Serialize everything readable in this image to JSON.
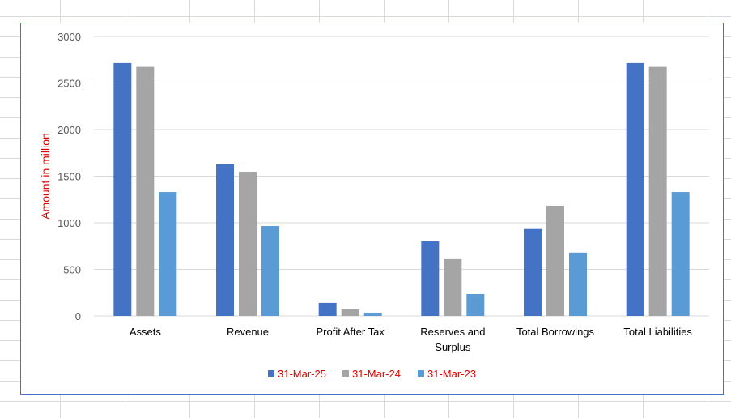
{
  "chart_data": {
    "type": "bar",
    "title": "",
    "xlabel": "",
    "ylabel": "Amount in million",
    "ylim": [
      0,
      3000
    ],
    "yticks": [
      0,
      500,
      1000,
      1500,
      2000,
      2500,
      3000
    ],
    "grid": true,
    "legend_position": "bottom",
    "categories": [
      "Assets",
      "Revenue",
      "Profit After Tax",
      "Reserves and Surplus",
      "Total Borrowings",
      "Total Liabilities"
    ],
    "category_lines": [
      [
        "Assets"
      ],
      [
        "Revenue"
      ],
      [
        "Profit After Tax"
      ],
      [
        "Reserves and",
        "Surplus"
      ],
      [
        "Total Borrowings"
      ],
      [
        "Total Liabilities"
      ]
    ],
    "series": [
      {
        "name": "31-Mar-25",
        "color": "#4472c4",
        "values": [
          2714,
          1626,
          140,
          802,
          933,
          2714
        ]
      },
      {
        "name": "31-Mar-24",
        "color": "#a5a5a5",
        "values": [
          2673,
          1548,
          78,
          610,
          1183,
          2673
        ]
      },
      {
        "name": "31-Mar-23",
        "color": "#5b9bd5",
        "values": [
          1330,
          965,
          35,
          235,
          680,
          1330
        ]
      }
    ]
  }
}
